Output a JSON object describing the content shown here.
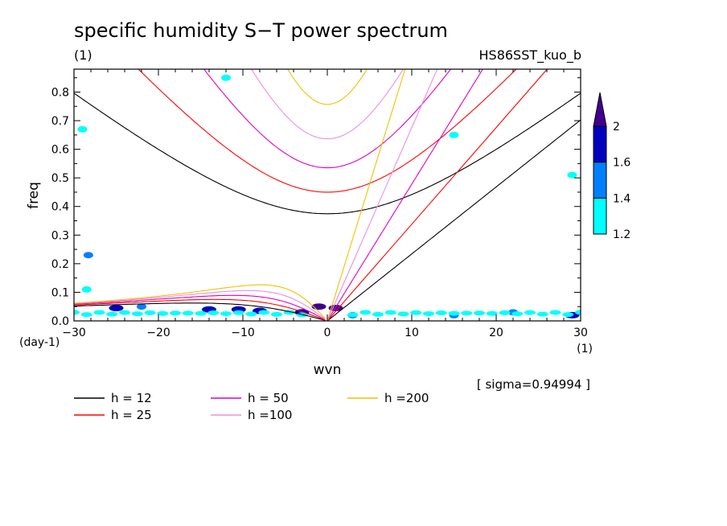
{
  "figure": {
    "title": "specific humidity S−T power spectrum",
    "subtitle_left": "(1)",
    "subtitle_right": "HS86SST_kuo_b",
    "sigma_note": "[ sigma=0.94994 ]"
  },
  "chart_data": {
    "type": "contour",
    "title": "specific humidity S−T power spectrum",
    "xlabel": "wvn",
    "ylabel": "freq",
    "x_unit": "(1)",
    "y_unit": "(day-1)",
    "xlim": [
      -30,
      30
    ],
    "ylim": [
      0,
      0.88
    ],
    "x_ticks": [
      -30,
      -20,
      -10,
      0,
      10,
      20,
      30
    ],
    "x_tick_labels": [
      "−30",
      "−20",
      "−10",
      "0",
      "10",
      "20",
      "30"
    ],
    "y_ticks": [
      0,
      0.1,
      0.2,
      0.3,
      0.4,
      0.5,
      0.6,
      0.7,
      0.8
    ],
    "y_tick_labels": [
      "0.0",
      "0.1",
      "0.2",
      "0.3",
      "0.4",
      "0.5",
      "0.6",
      "0.7",
      "0.8"
    ],
    "colorbar": {
      "levels": [
        1.2,
        1.4,
        1.6,
        2
      ],
      "labels": [
        "1.2",
        "1.4",
        "1.6",
        "2"
      ],
      "colors": [
        "#00ffff",
        "#0080ff",
        "#0000c0",
        "#400090"
      ]
    },
    "dispersion_curves": [
      {
        "label": "h = 12",
        "h": 12,
        "color": "#000000"
      },
      {
        "label": "h = 25",
        "h": 25,
        "color": "#ff0000"
      },
      {
        "label": "h = 50",
        "h": 50,
        "color": "#e000c0"
      },
      {
        "label": "h =100",
        "h": 100,
        "color": "#e890e0"
      },
      {
        "label": "h =200",
        "h": 200,
        "color": "#f0c000"
      }
    ],
    "shaded_regions": [
      {
        "k": -29,
        "f": 0.67,
        "level": 1.2
      },
      {
        "k": -28.3,
        "f": 0.23,
        "level": 1.4
      },
      {
        "k": -28.5,
        "f": 0.11,
        "level": 1.2
      },
      {
        "k": -25,
        "f": 0.045,
        "level": 1.6
      },
      {
        "k": -22,
        "f": 0.05,
        "level": 1.4
      },
      {
        "k": -14,
        "f": 0.04,
        "level": 1.6
      },
      {
        "k": -10.5,
        "f": 0.04,
        "level": 1.6
      },
      {
        "k": -8,
        "f": 0.035,
        "level": 1.6
      },
      {
        "k": -3,
        "f": 0.03,
        "level": 1.6
      },
      {
        "k": -1,
        "f": 0.05,
        "level": 2
      },
      {
        "k": 1,
        "f": 0.045,
        "level": 2
      },
      {
        "k": 3,
        "f": 0.02,
        "level": 1.4
      },
      {
        "k": 15,
        "f": 0.02,
        "level": 1.4
      },
      {
        "k": 22,
        "f": 0.03,
        "level": 1.4
      },
      {
        "k": 29,
        "f": 0.02,
        "level": 1.6
      },
      {
        "k": -12,
        "f": 0.85,
        "level": 1.2
      },
      {
        "k": 15,
        "f": 0.65,
        "level": 1.2
      },
      {
        "k": 29,
        "f": 0.51,
        "level": 1.2
      }
    ]
  },
  "legend_entries": [
    {
      "label": "h = 12",
      "color": "#000000"
    },
    {
      "label": "h = 25",
      "color": "#ff0000"
    },
    {
      "label": "h = 50",
      "color": "#e000c0"
    },
    {
      "label": "h =100",
      "color": "#e890e0"
    },
    {
      "label": "h =200",
      "color": "#f0c000"
    }
  ]
}
